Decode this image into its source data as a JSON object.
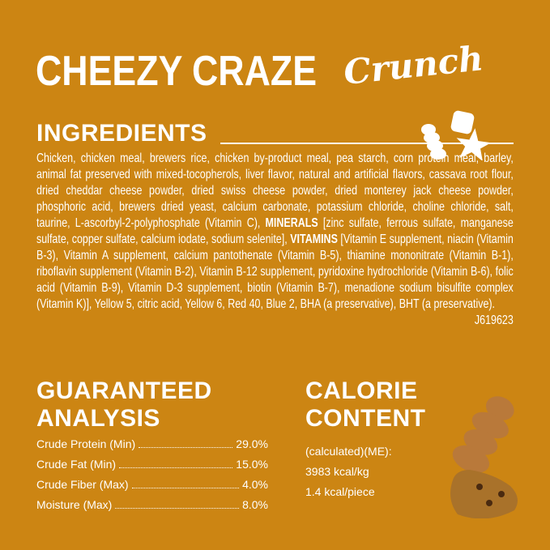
{
  "header": {
    "title": "CHEEZY CRAZE",
    "subtitle": "Crunch"
  },
  "ingredients": {
    "heading": "INGREDIENTS",
    "text_start": "Chicken, chicken meal, brewers rice, chicken by-product meal, pea starch, corn protein meal, barley, animal fat preserved with mixed-tocopherols, liver flavor, natural and artificial flavors, cassava root flour, dried cheddar cheese powder, dried swiss cheese powder, dried monterey jack cheese powder, phosphoric acid, brewers dried yeast, calcium carbonate, potassium chloride, choline chloride, salt, taurine, L-ascorbyl-2-polyphosphate (Vitamin C), ",
    "minerals_label": "MINERALS",
    "minerals_text": " [zinc sulfate, ferrous sulfate, manganese sulfate, copper sulfate, calcium iodate, sodium selenite], ",
    "vitamins_label": "VITAMINS",
    "vitamins_text": " [Vitamin E supplement, niacin (Vitamin B-3), Vitamin A supplement, calcium pantothenate (Vitamin B-5), thiamine mononitrate (Vitamin B-1), riboflavin supplement (Vitamin B-2), Vitamin B-12 supplement, pyridoxine hydrochloride (Vitamin B-6), folic acid (Vitamin B-9), Vitamin D-3 supplement, biotin (Vitamin B-7), menadione sodium bisulfite complex (Vitamin K)], Yellow 5, citric acid, Yellow 6, Red 40, Blue 2, BHA (a preservative), BHT (a preservative).",
    "code": "J619623"
  },
  "guaranteed_analysis": {
    "heading_line1": "GUARANTEED",
    "heading_line2": "ANALYSIS",
    "rows": [
      {
        "label": "Crude Protein (Min)",
        "value": "29.0%"
      },
      {
        "label": "Crude Fat (Min)",
        "value": "15.0%"
      },
      {
        "label": "Crude Fiber (Max)",
        "value": "4.0%"
      },
      {
        "label": "Moisture (Max)",
        "value": "8.0%"
      }
    ]
  },
  "calorie_content": {
    "heading_line1": "CALORIE",
    "heading_line2": "CONTENT",
    "lines": [
      "(calculated)(ME):",
      "3983 kcal/kg",
      "1.4 kcal/piece"
    ]
  },
  "colors": {
    "background": "#cc8513",
    "text": "#ffffff",
    "treat": "#b9793a"
  }
}
